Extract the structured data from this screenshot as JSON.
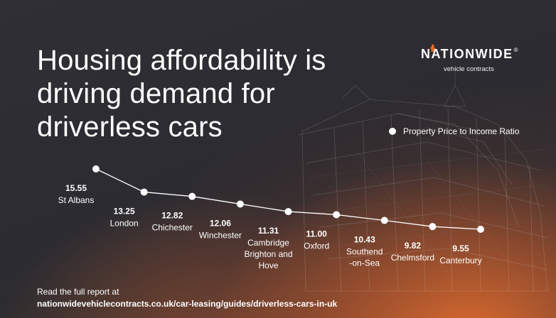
{
  "title": "Housing affordability is driving demand for driverless cars",
  "logo": {
    "wordmark": "NATIONWIDE",
    "registered": "®",
    "tagline": "vehicle contracts"
  },
  "footer": {
    "line1": "Read the full report at",
    "line2": "nationwidevehiclecontracts.co.uk/car-leasing/guides/driverless-cars-in-uk"
  },
  "colors": {
    "accent": "#e8692a",
    "background": "#2d2d33",
    "marker": "#ffffff"
  },
  "chart_data": {
    "type": "line",
    "series": [
      {
        "name": "Property Price to Income Ratio",
        "values": [
          15.55,
          13.25,
          12.82,
          12.06,
          11.31,
          11.0,
          10.43,
          9.82,
          9.55
        ]
      }
    ],
    "categories": [
      [
        "St Albans"
      ],
      [
        "London"
      ],
      [
        "Chichester"
      ],
      [
        "Winchester"
      ],
      [
        "Cambridge",
        "Brighton and",
        "Hove"
      ],
      [
        "Oxford"
      ],
      [
        "Southend",
        "-on-Sea"
      ],
      [
        "Chelmsford"
      ],
      [
        "Canterbury"
      ]
    ],
    "value_labels": [
      "15.55",
      "13.25",
      "12.82",
      "12.06",
      "11.31",
      "11.00",
      "10.43",
      "9.82",
      "9.55"
    ],
    "legend": "top-right",
    "grid": false
  }
}
